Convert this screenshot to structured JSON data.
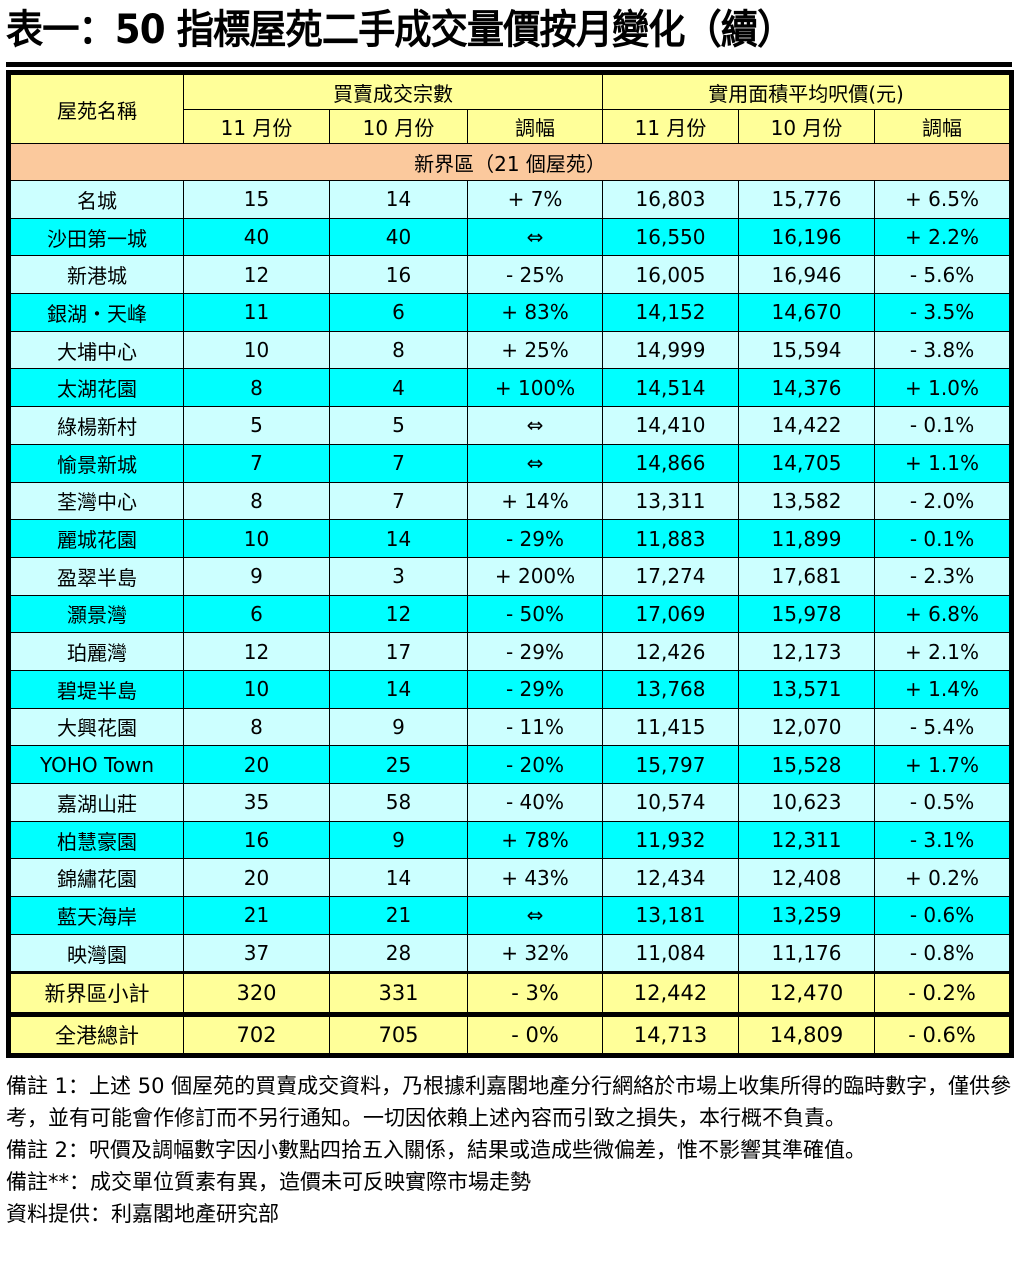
{
  "title": "表一：50 指標屋苑二手成交量價按月變化（續）",
  "table": {
    "header": {
      "name_col": "屋苑名稱",
      "group_volume": "買賣成交宗數",
      "group_price": "實用面積平均呎價(元)",
      "sub_cols": [
        "11 月份",
        "10 月份",
        "調幅",
        "11 月份",
        "10 月份",
        "調幅"
      ]
    },
    "region_label": "新界區（21 個屋苑）",
    "rows": [
      {
        "name": "名城",
        "vol_nov": "15",
        "vol_oct": "14",
        "vol_chg": "+ 7%",
        "price_nov": "16,803",
        "price_oct": "15,776",
        "price_chg": "+ 6.5%"
      },
      {
        "name": "沙田第一城",
        "vol_nov": "40",
        "vol_oct": "40",
        "vol_chg": "⇔",
        "price_nov": "16,550",
        "price_oct": "16,196",
        "price_chg": "+ 2.2%"
      },
      {
        "name": "新港城",
        "vol_nov": "12",
        "vol_oct": "16",
        "vol_chg": "- 25%",
        "price_nov": "16,005",
        "price_oct": "16,946",
        "price_chg": "- 5.6%"
      },
      {
        "name": "銀湖・天峰",
        "vol_nov": "11",
        "vol_oct": "6",
        "vol_chg": "+ 83%",
        "price_nov": "14,152",
        "price_oct": "14,670",
        "price_chg": "- 3.5%"
      },
      {
        "name": "大埔中心",
        "vol_nov": "10",
        "vol_oct": "8",
        "vol_chg": "+ 25%",
        "price_nov": "14,999",
        "price_oct": "15,594",
        "price_chg": "- 3.8%"
      },
      {
        "name": "太湖花園",
        "vol_nov": "8",
        "vol_oct": "4",
        "vol_chg": "+ 100%",
        "price_nov": "14,514",
        "price_oct": "14,376",
        "price_chg": "+ 1.0%"
      },
      {
        "name": "綠楊新村",
        "vol_nov": "5",
        "vol_oct": "5",
        "vol_chg": "⇔",
        "price_nov": "14,410",
        "price_oct": "14,422",
        "price_chg": "- 0.1%"
      },
      {
        "name": "愉景新城",
        "vol_nov": "7",
        "vol_oct": "7",
        "vol_chg": "⇔",
        "price_nov": "14,866",
        "price_oct": "14,705",
        "price_chg": "+ 1.1%"
      },
      {
        "name": "荃灣中心",
        "vol_nov": "8",
        "vol_oct": "7",
        "vol_chg": "+ 14%",
        "price_nov": "13,311",
        "price_oct": "13,582",
        "price_chg": "- 2.0%"
      },
      {
        "name": "麗城花園",
        "vol_nov": "10",
        "vol_oct": "14",
        "vol_chg": "- 29%",
        "price_nov": "11,883",
        "price_oct": "11,899",
        "price_chg": "- 0.1%"
      },
      {
        "name": "盈翠半島",
        "vol_nov": "9",
        "vol_oct": "3",
        "vol_chg": "+ 200%",
        "price_nov": "17,274",
        "price_oct": "17,681",
        "price_chg": "- 2.3%"
      },
      {
        "name": "灝景灣",
        "vol_nov": "6",
        "vol_oct": "12",
        "vol_chg": "- 50%",
        "price_nov": "17,069",
        "price_oct": "15,978",
        "price_chg": "+ 6.8%"
      },
      {
        "name": "珀麗灣",
        "vol_nov": "12",
        "vol_oct": "17",
        "vol_chg": "- 29%",
        "price_nov": "12,426",
        "price_oct": "12,173",
        "price_chg": "+ 2.1%"
      },
      {
        "name": "碧堤半島",
        "vol_nov": "10",
        "vol_oct": "14",
        "vol_chg": "- 29%",
        "price_nov": "13,768",
        "price_oct": "13,571",
        "price_chg": "+ 1.4%"
      },
      {
        "name": "大興花園",
        "vol_nov": "8",
        "vol_oct": "9",
        "vol_chg": "- 11%",
        "price_nov": "11,415",
        "price_oct": "12,070",
        "price_chg": "- 5.4%"
      },
      {
        "name": "YOHO Town",
        "vol_nov": "20",
        "vol_oct": "25",
        "vol_chg": "- 20%",
        "price_nov": "15,797",
        "price_oct": "15,528",
        "price_chg": "+ 1.7%"
      },
      {
        "name": "嘉湖山莊",
        "vol_nov": "35",
        "vol_oct": "58",
        "vol_chg": "- 40%",
        "price_nov": "10,574",
        "price_oct": "10,623",
        "price_chg": "- 0.5%"
      },
      {
        "name": "柏慧豪園",
        "vol_nov": "16",
        "vol_oct": "9",
        "vol_chg": "+ 78%",
        "price_nov": "11,932",
        "price_oct": "12,311",
        "price_chg": "- 3.1%"
      },
      {
        "name": "錦繡花園",
        "vol_nov": "20",
        "vol_oct": "14",
        "vol_chg": "+ 43%",
        "price_nov": "12,434",
        "price_oct": "12,408",
        "price_chg": "+ 0.2%"
      },
      {
        "name": "藍天海岸",
        "vol_nov": "21",
        "vol_oct": "21",
        "vol_chg": "⇔",
        "price_nov": "13,181",
        "price_oct": "13,259",
        "price_chg": "- 0.6%"
      },
      {
        "name": "映灣園",
        "vol_nov": "37",
        "vol_oct": "28",
        "vol_chg": "+ 32%",
        "price_nov": "11,084",
        "price_oct": "11,176",
        "price_chg": "- 0.8%"
      }
    ],
    "subtotal": {
      "name": "新界區小計",
      "vol_nov": "320",
      "vol_oct": "331",
      "vol_chg": "- 3%",
      "price_nov": "12,442",
      "price_oct": "12,470",
      "price_chg": "- 0.2%"
    },
    "total": {
      "name": "全港總計",
      "vol_nov": "702",
      "vol_oct": "705",
      "vol_chg": "- 0%",
      "price_nov": "14,713",
      "price_oct": "14,809",
      "price_chg": "- 0.6%"
    }
  },
  "notes": {
    "note1": "備註 1：上述 50 個屋苑的買賣成交資料，乃根據利嘉閣地產分行網絡於市場上收集所得的臨時數字，僅供參考，並有可能會作修訂而不另行通知。一切因依賴上述內容而引致之損失，本行概不負責。",
    "note2": "備註 2：呎價及調幅數字因小數點四拾五入關係，結果或造成些微偏差，惟不影響其準確值。",
    "note3": "備註**：成交單位質素有異，造價未可反映實際市場走勢",
    "source": "資料提供：利嘉閣地產研究部"
  },
  "colors": {
    "header_bg": "#ffff99",
    "region_bg": "#fbc99d",
    "row_light": "#ccffff",
    "row_dark": "#00ffff"
  }
}
